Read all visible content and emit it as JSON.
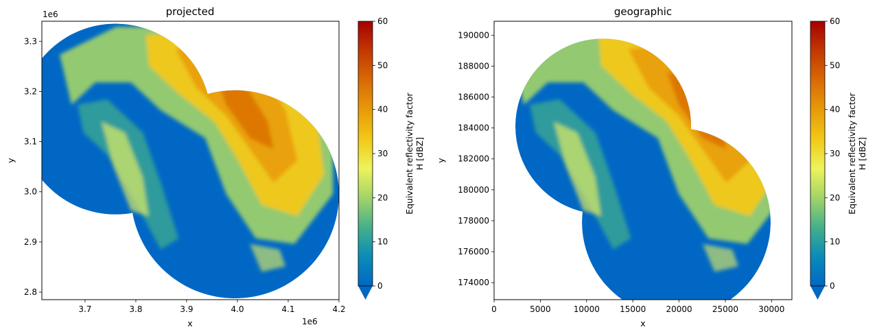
{
  "colors": {
    "colormap": [
      "#0068c4",
      "#0a8cb8",
      "#45b08a",
      "#a3d468",
      "#eef35a",
      "#f2c816",
      "#e79a08",
      "#d86a05",
      "#c23802",
      "#a60000"
    ],
    "under": "#0068c4"
  },
  "chart_data": [
    {
      "type": "heatmap",
      "title": "projected",
      "xlabel": "x",
      "ylabel": "y",
      "x_offset_label": "1e6",
      "y_offset_label": "1e6",
      "xlim": [
        3.615,
        4.2
      ],
      "ylim": [
        2.785,
        3.34
      ],
      "x_ticks": [
        3.7,
        3.8,
        3.9,
        4.0,
        4.1,
        4.2
      ],
      "x_tick_labels": [
        "3.7",
        "3.8",
        "3.9",
        "4.0",
        "4.1",
        "4.2"
      ],
      "y_ticks": [
        2.8,
        2.9,
        3.0,
        3.1,
        3.2,
        3.3
      ],
      "y_tick_labels": [
        "2.8",
        "2.9",
        "3.0",
        "3.1",
        "3.2",
        "3.3"
      ],
      "colorbar": {
        "label_line1": "Equivalent reflectivity factor",
        "label_line2": "H [dBZ]",
        "range": [
          0,
          60
        ],
        "ticks": [
          0,
          10,
          20,
          30,
          40,
          50,
          60
        ],
        "tick_labels": [
          "0",
          "10",
          "20",
          "30",
          "40",
          "50",
          "60"
        ],
        "extend": "min"
      },
      "radar_coverage": [
        {
          "center_x": 3.76,
          "center_y": 3.145,
          "radius": 0.188
        },
        {
          "center_x": 3.995,
          "center_y": 2.995,
          "radius": 0.205
        }
      ]
    },
    {
      "type": "heatmap",
      "title": "geographic",
      "xlabel": "x",
      "ylabel": "y",
      "xlim": [
        0,
        32200
      ],
      "ylim": [
        172900,
        190900
      ],
      "x_ticks": [
        0,
        5000,
        10000,
        15000,
        20000,
        25000,
        30000
      ],
      "x_tick_labels": [
        "0",
        "5000",
        "10000",
        "15000",
        "20000",
        "25000",
        "30000"
      ],
      "y_ticks": [
        174000,
        176000,
        178000,
        180000,
        182000,
        184000,
        186000,
        188000,
        190000
      ],
      "y_tick_labels": [
        "174000",
        "176000",
        "178000",
        "180000",
        "182000",
        "184000",
        "186000",
        "188000",
        "190000"
      ],
      "colorbar": {
        "label_line1": "Equivalent reflectivity factor",
        "label_line2": "H [dBZ]",
        "range": [
          0,
          60
        ],
        "ticks": [
          0,
          10,
          20,
          30,
          40,
          50,
          60
        ],
        "tick_labels": [
          "0",
          "10",
          "20",
          "30",
          "40",
          "50",
          "60"
        ],
        "extend": "min"
      },
      "radar_coverage": [
        {
          "center_x": 11800,
          "center_y": 184100,
          "radius": 9500
        },
        {
          "center_x": 19700,
          "center_y": 177900,
          "radius": 10200
        }
      ]
    }
  ]
}
